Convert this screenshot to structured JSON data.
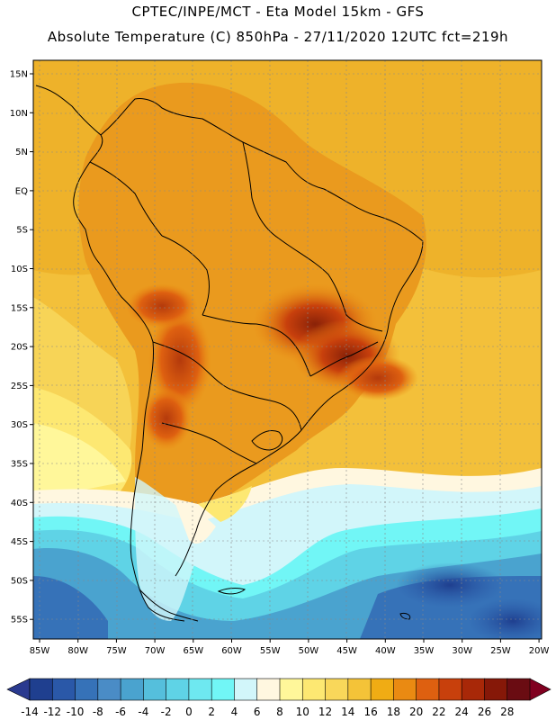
{
  "header": {
    "line1": "CPTEC/INPE/MCT  -   Eta Model 15km  -  GFS",
    "line2": "Absolute Temperature (C) 850hPa - 27/11/2020 12UTC fct=219h"
  },
  "axes": {
    "lat_labels": [
      "15N",
      "10N",
      "5N",
      "EQ",
      "5S",
      "10S",
      "15S",
      "20S",
      "25S",
      "30S",
      "35S",
      "40S",
      "45S",
      "50S",
      "55S"
    ],
    "lon_labels": [
      "85W",
      "80W",
      "75W",
      "70W",
      "65W",
      "60W",
      "55W",
      "50W",
      "45W",
      "40W",
      "35W",
      "30W",
      "25W",
      "20W"
    ]
  },
  "colorbar": {
    "labels": [
      "-14",
      "-12",
      "-10",
      "-8",
      "-6",
      "-4",
      "-2",
      "0",
      "2",
      "4",
      "6",
      "8",
      "10",
      "12",
      "14",
      "16",
      "18",
      "20",
      "22",
      "24",
      "26",
      "28"
    ],
    "colors": [
      "#1f3f8f",
      "#2a58a8",
      "#3672b8",
      "#4a8cc6",
      "#4aa3cf",
      "#55bfdc",
      "#5fd3e6",
      "#6ee8f0",
      "#71f6f6",
      "#d2f6fa",
      "#fff7e0",
      "#fff79a",
      "#fde872",
      "#f9d75a",
      "#f4c338",
      "#f0ac14",
      "#ea8a12",
      "#de6010",
      "#c8400c",
      "#a82808",
      "#861808",
      "#6a0c12"
    ],
    "under_color": "#2a3a8f",
    "over_color": "#800020"
  }
}
